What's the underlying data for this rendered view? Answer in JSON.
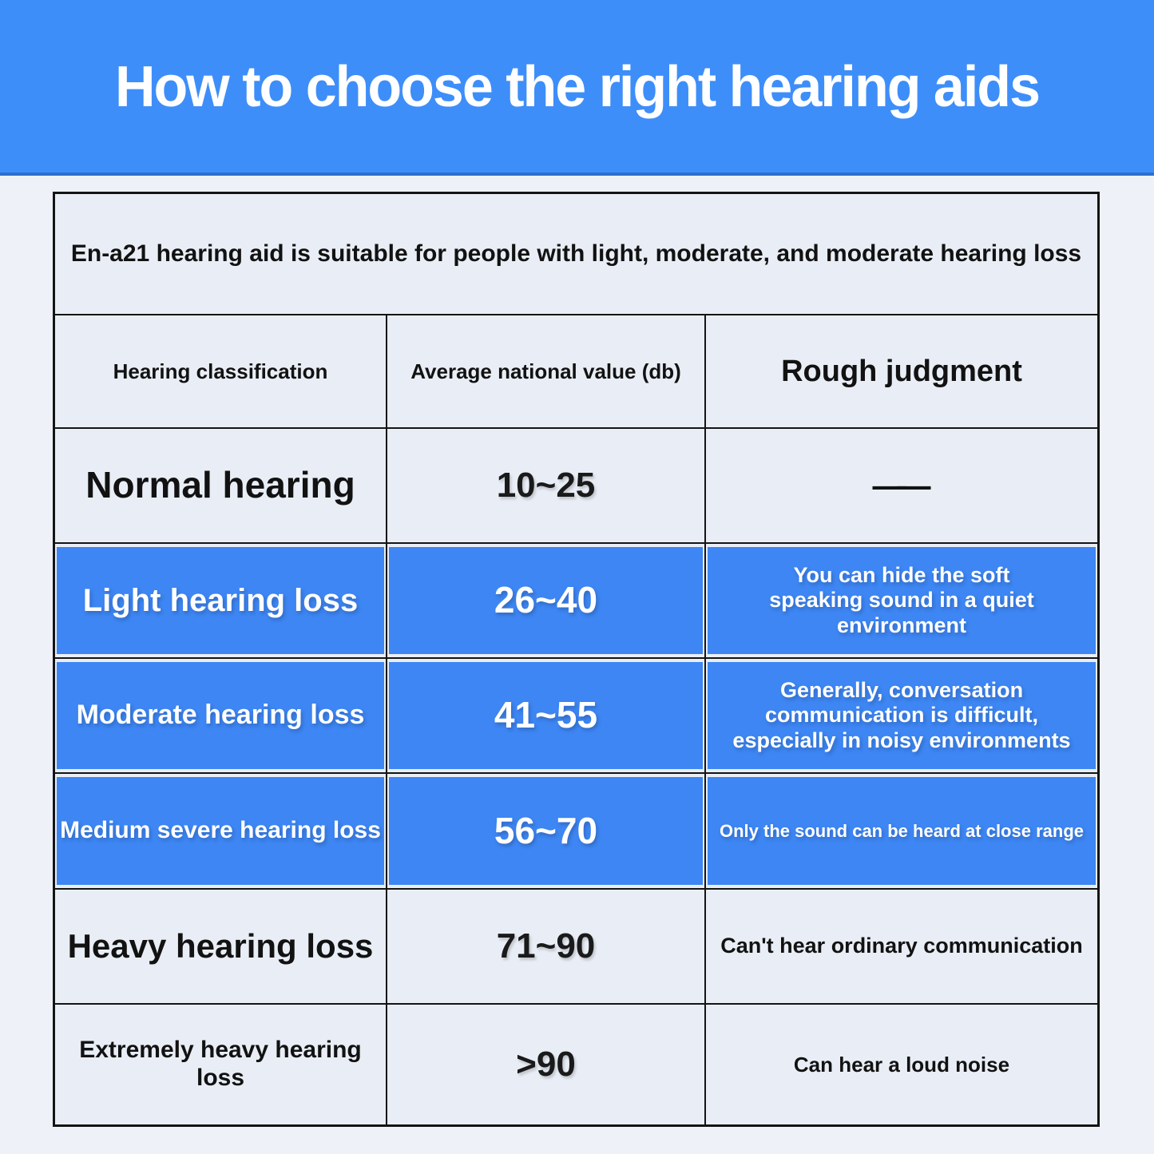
{
  "banner": {
    "title": "How to choose the right hearing aids"
  },
  "colors": {
    "banner_blue": "#3e8ef9",
    "banner_edge": "#2f6fce",
    "row_highlight_blue": "#3d86f3",
    "page_background": "#eef2f8",
    "cell_background": "#e9eef6",
    "grid_line": "#141414",
    "text_dark": "#121212",
    "text_light": "#ffffff"
  },
  "table": {
    "caption": "En-a21 hearing aid is suitable for people with light, moderate, and moderate hearing loss",
    "columns": [
      "Hearing classification",
      "Average national value (db)",
      "Rough judgment"
    ],
    "rows": [
      {
        "classification": "Normal hearing",
        "value": "10~25",
        "judgment": "——",
        "highlighted": false
      },
      {
        "classification": "Light hearing loss",
        "value": "26~40",
        "judgment": "You can hide the soft speaking sound in a quiet environment",
        "highlighted": true
      },
      {
        "classification": "Moderate hearing loss",
        "value": "41~55",
        "judgment": "Generally, conversation communication is difficult, especially in noisy environments",
        "highlighted": true
      },
      {
        "classification": "Medium severe hearing loss",
        "value": "56~70",
        "judgment": "Only the sound can be heard at close range",
        "highlighted": true
      },
      {
        "classification": "Heavy hearing loss",
        "value": "71~90",
        "judgment": "Can't hear ordinary communication",
        "highlighted": false
      },
      {
        "classification": "Extremely heavy hearing loss",
        "value": ">90",
        "judgment": "Can hear a loud noise",
        "highlighted": false
      }
    ]
  }
}
